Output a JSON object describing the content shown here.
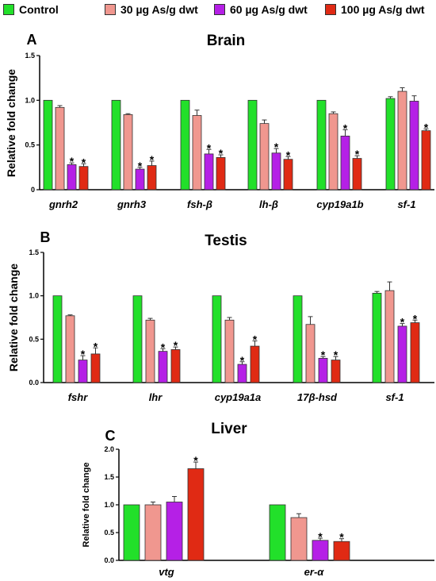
{
  "legend": {
    "items": [
      {
        "label": "Control",
        "color": "#22e02a"
      },
      {
        "label": "30 µg As/g dwt",
        "color": "#f0978f"
      },
      {
        "label": "60 µg As/g dwt",
        "color": "#b520e6"
      },
      {
        "label": "100 µg As/g dwt",
        "color": "#e02a14"
      }
    ]
  },
  "chart_data": [
    {
      "type": "bar",
      "letter": "A",
      "title": "Brain",
      "ylabel": "Relative fold change",
      "ylim": [
        0,
        1.5
      ],
      "yticks": [
        "0",
        "0.5",
        "1.0",
        "1.5"
      ],
      "categories": [
        "gnrh2",
        "gnrh3",
        "fsh-β",
        "lh-β",
        "cyp19a1b",
        "sf-1"
      ],
      "series": [
        {
          "name": "Control",
          "values": [
            1.0,
            1.0,
            1.0,
            1.0,
            1.0,
            1.02
          ],
          "errors": [
            0,
            0,
            0,
            0,
            0,
            0.02
          ],
          "stars": [
            false,
            false,
            false,
            false,
            false,
            false
          ]
        },
        {
          "name": "30 µg As/g dwt",
          "values": [
            0.92,
            0.84,
            0.83,
            0.74,
            0.85,
            1.1
          ],
          "errors": [
            0.02,
            0.01,
            0.06,
            0.04,
            0.02,
            0.04
          ],
          "stars": [
            false,
            false,
            false,
            false,
            false,
            false
          ]
        },
        {
          "name": "60 µg As/g dwt",
          "values": [
            0.28,
            0.23,
            0.4,
            0.41,
            0.6,
            0.99
          ],
          "errors": [
            0.02,
            0.02,
            0.05,
            0.05,
            0.07,
            0.06
          ],
          "stars": [
            true,
            true,
            true,
            true,
            true,
            false
          ]
        },
        {
          "name": "100 µg As/g dwt",
          "values": [
            0.26,
            0.27,
            0.36,
            0.34,
            0.35,
            0.66
          ],
          "errors": [
            0.03,
            0.05,
            0.03,
            0.03,
            0.03,
            0.02
          ],
          "stars": [
            true,
            true,
            true,
            true,
            true,
            true
          ]
        }
      ]
    },
    {
      "type": "bar",
      "letter": "B",
      "title": "Testis",
      "ylabel": "Relative fold change",
      "ylim": [
        0,
        1.5
      ],
      "yticks": [
        "0.0",
        "0.5",
        "1.0",
        "1.5"
      ],
      "categories": [
        "fshr",
        "lhr",
        "cyp19a1a",
        "17β-hsd",
        "sf-1"
      ],
      "series": [
        {
          "name": "Control",
          "values": [
            1.0,
            1.0,
            1.0,
            1.0,
            1.03
          ],
          "errors": [
            0,
            0,
            0,
            0,
            0.02
          ],
          "stars": [
            false,
            false,
            false,
            false,
            false
          ]
        },
        {
          "name": "30 µg As/g dwt",
          "values": [
            0.77,
            0.72,
            0.72,
            0.67,
            1.06
          ],
          "errors": [
            0.01,
            0.02,
            0.03,
            0.09,
            0.1
          ],
          "stars": [
            false,
            false,
            false,
            false,
            false
          ]
        },
        {
          "name": "60 µg As/g dwt",
          "values": [
            0.26,
            0.36,
            0.21,
            0.28,
            0.65
          ],
          "errors": [
            0.05,
            0.03,
            0.03,
            0.02,
            0.03
          ],
          "stars": [
            true,
            true,
            true,
            true,
            true
          ]
        },
        {
          "name": "100 µg As/g dwt",
          "values": [
            0.33,
            0.38,
            0.42,
            0.26,
            0.69
          ],
          "errors": [
            0.07,
            0.03,
            0.06,
            0.04,
            0.03
          ],
          "stars": [
            true,
            true,
            true,
            true,
            true
          ]
        }
      ]
    },
    {
      "type": "bar",
      "letter": "C",
      "title": "Liver",
      "ylabel": "Relative fold change",
      "ylim": [
        0,
        2.0
      ],
      "yticks": [
        "0.0",
        "0.5",
        "1.0",
        "1.5",
        "2.0"
      ],
      "categories": [
        "vtg",
        "er-α"
      ],
      "series": [
        {
          "name": "Control",
          "values": [
            1.0,
            1.0
          ],
          "errors": [
            0,
            0
          ],
          "stars": [
            false,
            false
          ]
        },
        {
          "name": "30 µg As/g dwt",
          "values": [
            1.0,
            0.77
          ],
          "errors": [
            0.05,
            0.07
          ],
          "stars": [
            false,
            false
          ]
        },
        {
          "name": "60 µg As/g dwt",
          "values": [
            1.05,
            0.36
          ],
          "errors": [
            0.1,
            0.04
          ],
          "stars": [
            false,
            true
          ]
        },
        {
          "name": "100 µg As/g dwt",
          "values": [
            1.65,
            0.34
          ],
          "errors": [
            0.12,
            0.05
          ],
          "stars": [
            true,
            true
          ]
        }
      ]
    }
  ]
}
